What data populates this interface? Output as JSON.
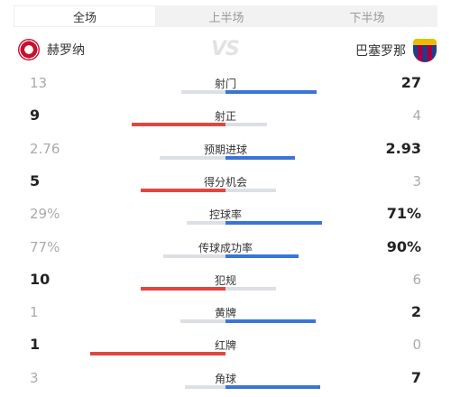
{
  "tabs": [
    {
      "label": "全场",
      "active": true
    },
    {
      "label": "上半场",
      "active": false
    },
    {
      "label": "下半场",
      "active": false
    }
  ],
  "home_team": {
    "name": "赫罗纳",
    "logo": "girona-crest-icon"
  },
  "away_team": {
    "name": "巴塞罗那",
    "logo": "barcelona-crest-icon"
  },
  "vs_text": "VS",
  "colors": {
    "home_accent": "#e2463f",
    "away_accent": "#3a74d9",
    "inactive_bar": "#dcdfe4"
  },
  "stats": [
    {
      "label": "射门",
      "home": "13",
      "away": "27",
      "home_value": 13,
      "away_value": 27
    },
    {
      "label": "射正",
      "home": "9",
      "away": "4",
      "home_value": 9,
      "away_value": 4
    },
    {
      "label": "预期进球",
      "home": "2.76",
      "away": "2.93",
      "home_value": 2.76,
      "away_value": 2.93
    },
    {
      "label": "得分机会",
      "home": "5",
      "away": "3",
      "home_value": 5,
      "away_value": 3
    },
    {
      "label": "控球率",
      "home": "29%",
      "away": "71%",
      "home_value": 29,
      "away_value": 71
    },
    {
      "label": "传球成功率",
      "home": "77%",
      "away": "90%",
      "home_value": 77,
      "away_value": 90
    },
    {
      "label": "犯规",
      "home": "10",
      "away": "6",
      "home_value": 10,
      "away_value": 6
    },
    {
      "label": "黄牌",
      "home": "1",
      "away": "2",
      "home_value": 1,
      "away_value": 2
    },
    {
      "label": "红牌",
      "home": "1",
      "away": "0",
      "home_value": 1,
      "away_value": 0
    },
    {
      "label": "角球",
      "home": "3",
      "away": "7",
      "home_value": 3,
      "away_value": 7
    }
  ]
}
